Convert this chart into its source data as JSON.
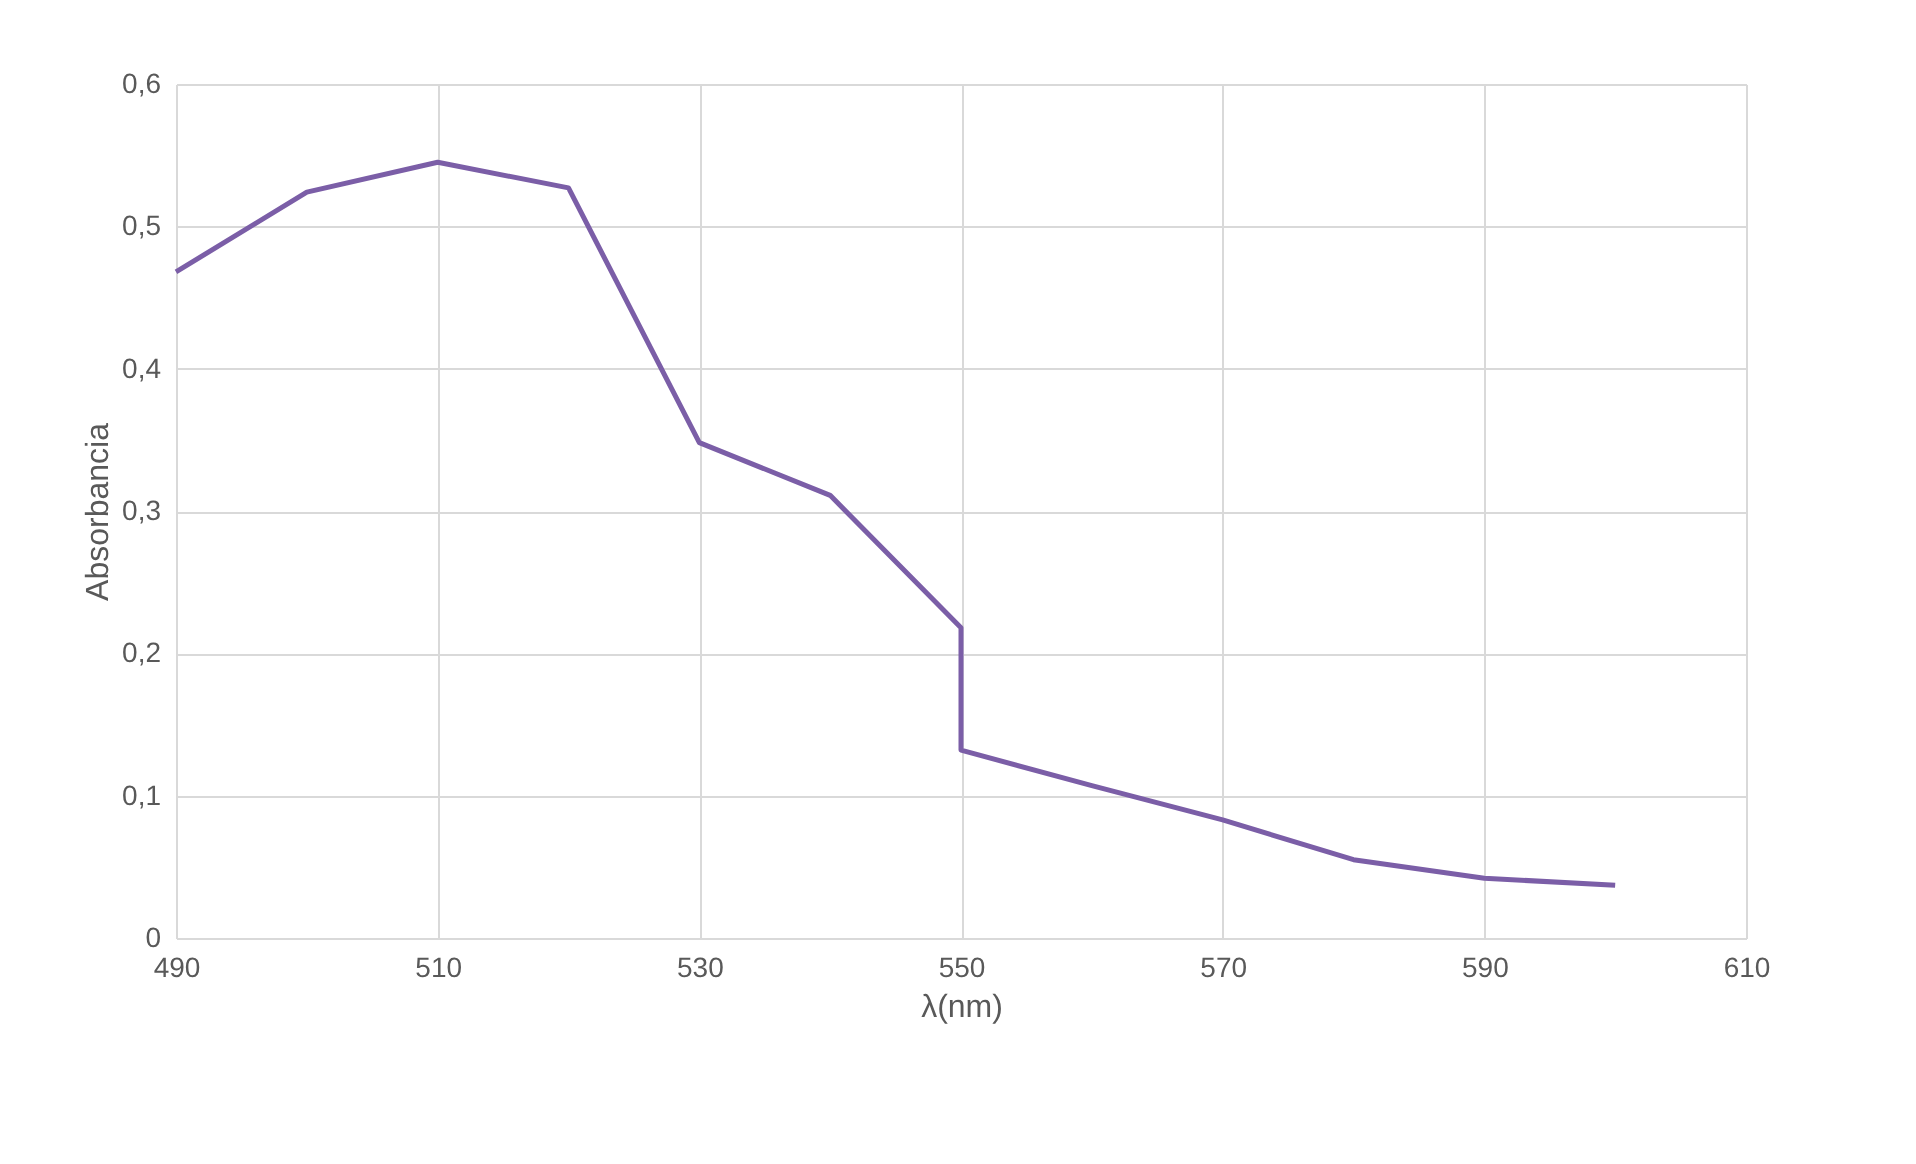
{
  "chart_data": {
    "type": "line",
    "xlabel": "λ(nm)",
    "ylabel": "Absorbancia",
    "series": [
      {
        "color": "#7b5ea7",
        "x": [
          490,
          500,
          510,
          520,
          530,
          540,
          550,
          550,
          560,
          570,
          580,
          590,
          600
        ],
        "values": [
          0.468,
          0.524,
          0.545,
          0.527,
          0.348,
          0.311,
          0.218,
          0.132,
          0.107,
          0.083,
          0.055,
          0.042,
          0.037
        ]
      }
    ],
    "xlim": [
      490,
      610
    ],
    "xticks": [
      490,
      510,
      530,
      550,
      570,
      590,
      610
    ],
    "ylim": [
      0,
      0.6
    ],
    "yticks": [
      0,
      {
        "value": 0.1,
        "label": "0,1"
      },
      {
        "value": 0.2,
        "label": "0,2"
      },
      {
        "value": 0.3,
        "label": "0,3"
      },
      {
        "value": 0.4,
        "label": "0,4"
      },
      {
        "value": 0.5,
        "label": "0,5"
      },
      {
        "value": 0.6,
        "label": "0,6"
      }
    ],
    "grid": true,
    "marker": "none",
    "line_style": "solid"
  }
}
